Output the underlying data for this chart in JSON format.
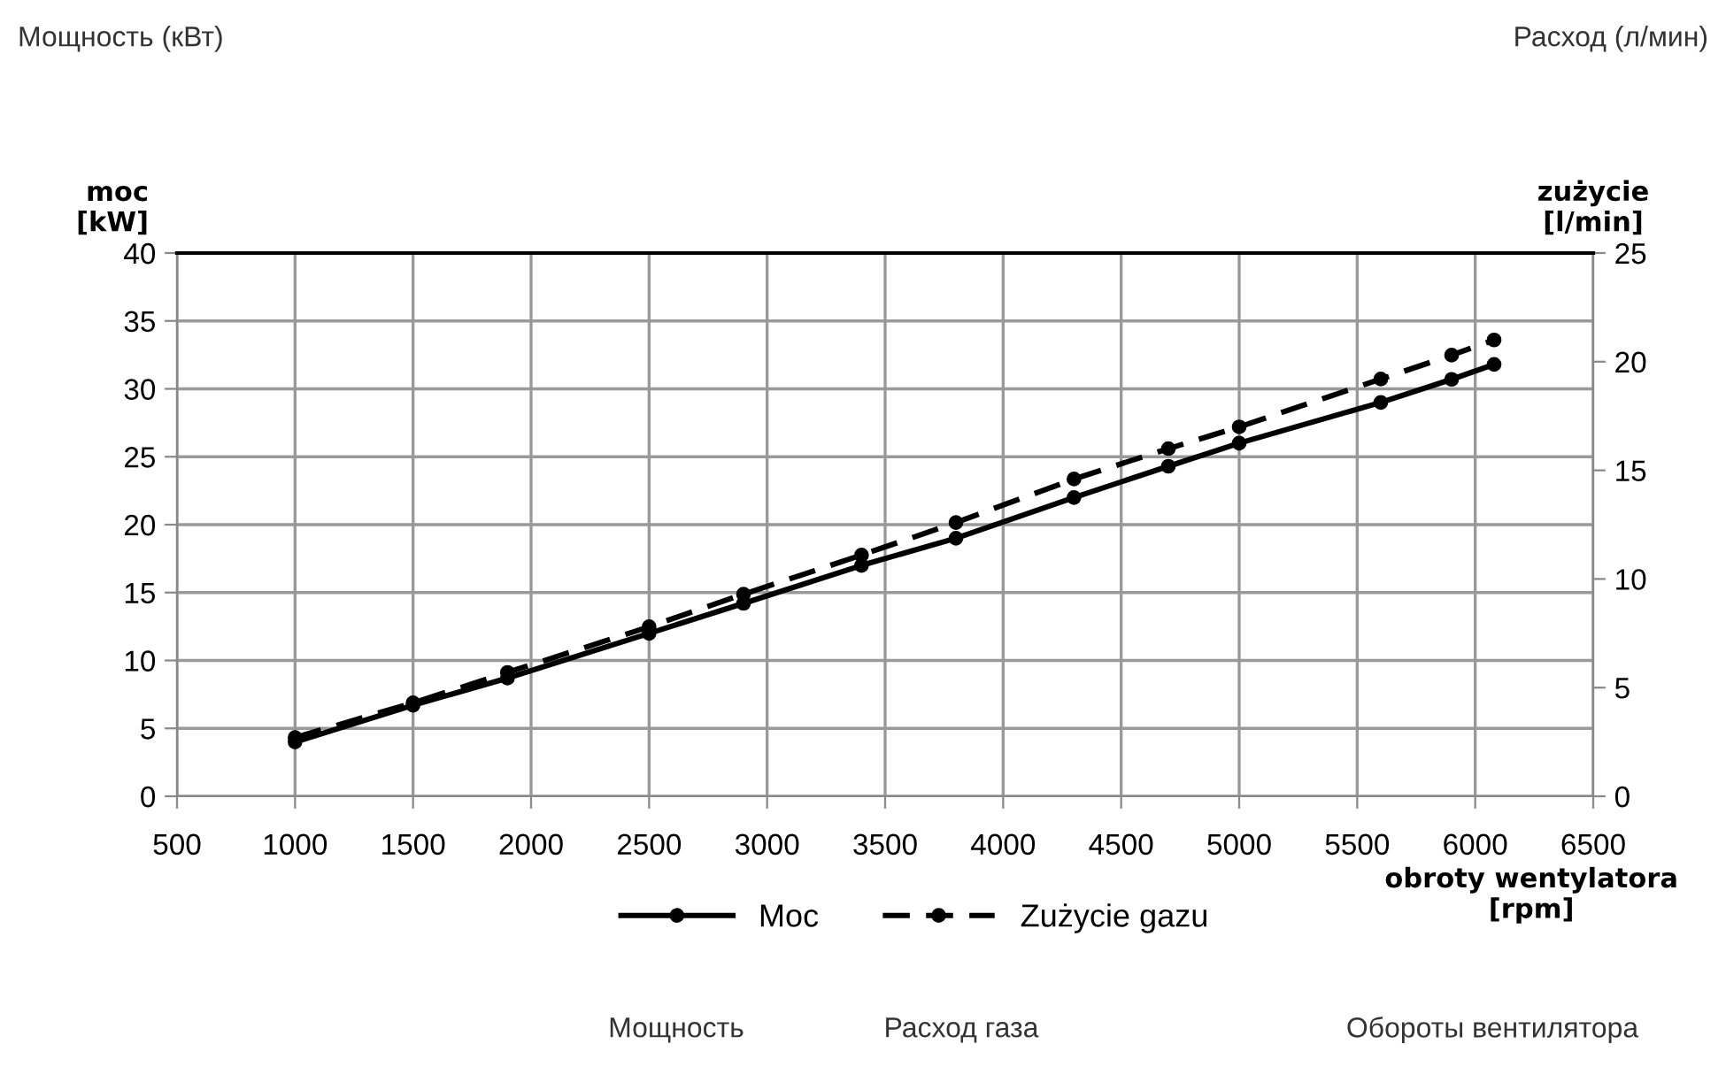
{
  "chart_data": {
    "type": "line",
    "x": [
      1000,
      1500,
      1900,
      2500,
      2900,
      3400,
      3800,
      4300,
      4700,
      5000,
      5600,
      5900,
      6080
    ],
    "series": [
      {
        "name": "Moc",
        "color": "#000000",
        "line_style": "solid",
        "values": [
          4,
          6.7,
          8.7,
          12,
          14.2,
          17,
          19,
          22,
          24.3,
          26,
          29,
          30.7,
          31.8
        ]
      },
      {
        "name": "Zużycie gazu",
        "color": "#000000",
        "line_style": "dashed",
        "axis": "y2",
        "values": [
          2.7,
          4.3,
          5.7,
          7.8,
          9.3,
          11.1,
          12.6,
          14.6,
          16,
          17,
          19.2,
          20.3,
          21
        ]
      }
    ],
    "marker": "circle",
    "xlabel": "obroty wentylatora\n[rpm]",
    "ylabel": "moc\n[kW]",
    "y2label": "zużycie\n[l/min]",
    "xlim": [
      500,
      6500
    ],
    "xticks": [
      500,
      1000,
      1500,
      2000,
      2500,
      3000,
      3500,
      4000,
      4500,
      5000,
      5500,
      6000,
      6500
    ],
    "ylim": [
      0,
      40
    ],
    "yticks": [
      0,
      5,
      10,
      15,
      20,
      25,
      30,
      35,
      40
    ],
    "y2lim": [
      0,
      25
    ],
    "y2ticks": [
      0,
      5,
      10,
      15,
      20,
      25
    ],
    "grid": true,
    "legend": "bottom",
    "annotations": [
      "Мощность (кВт)",
      "Расход (л/мин)",
      "Мощность",
      "Расход газа",
      "Обороты вентилятора"
    ]
  }
}
